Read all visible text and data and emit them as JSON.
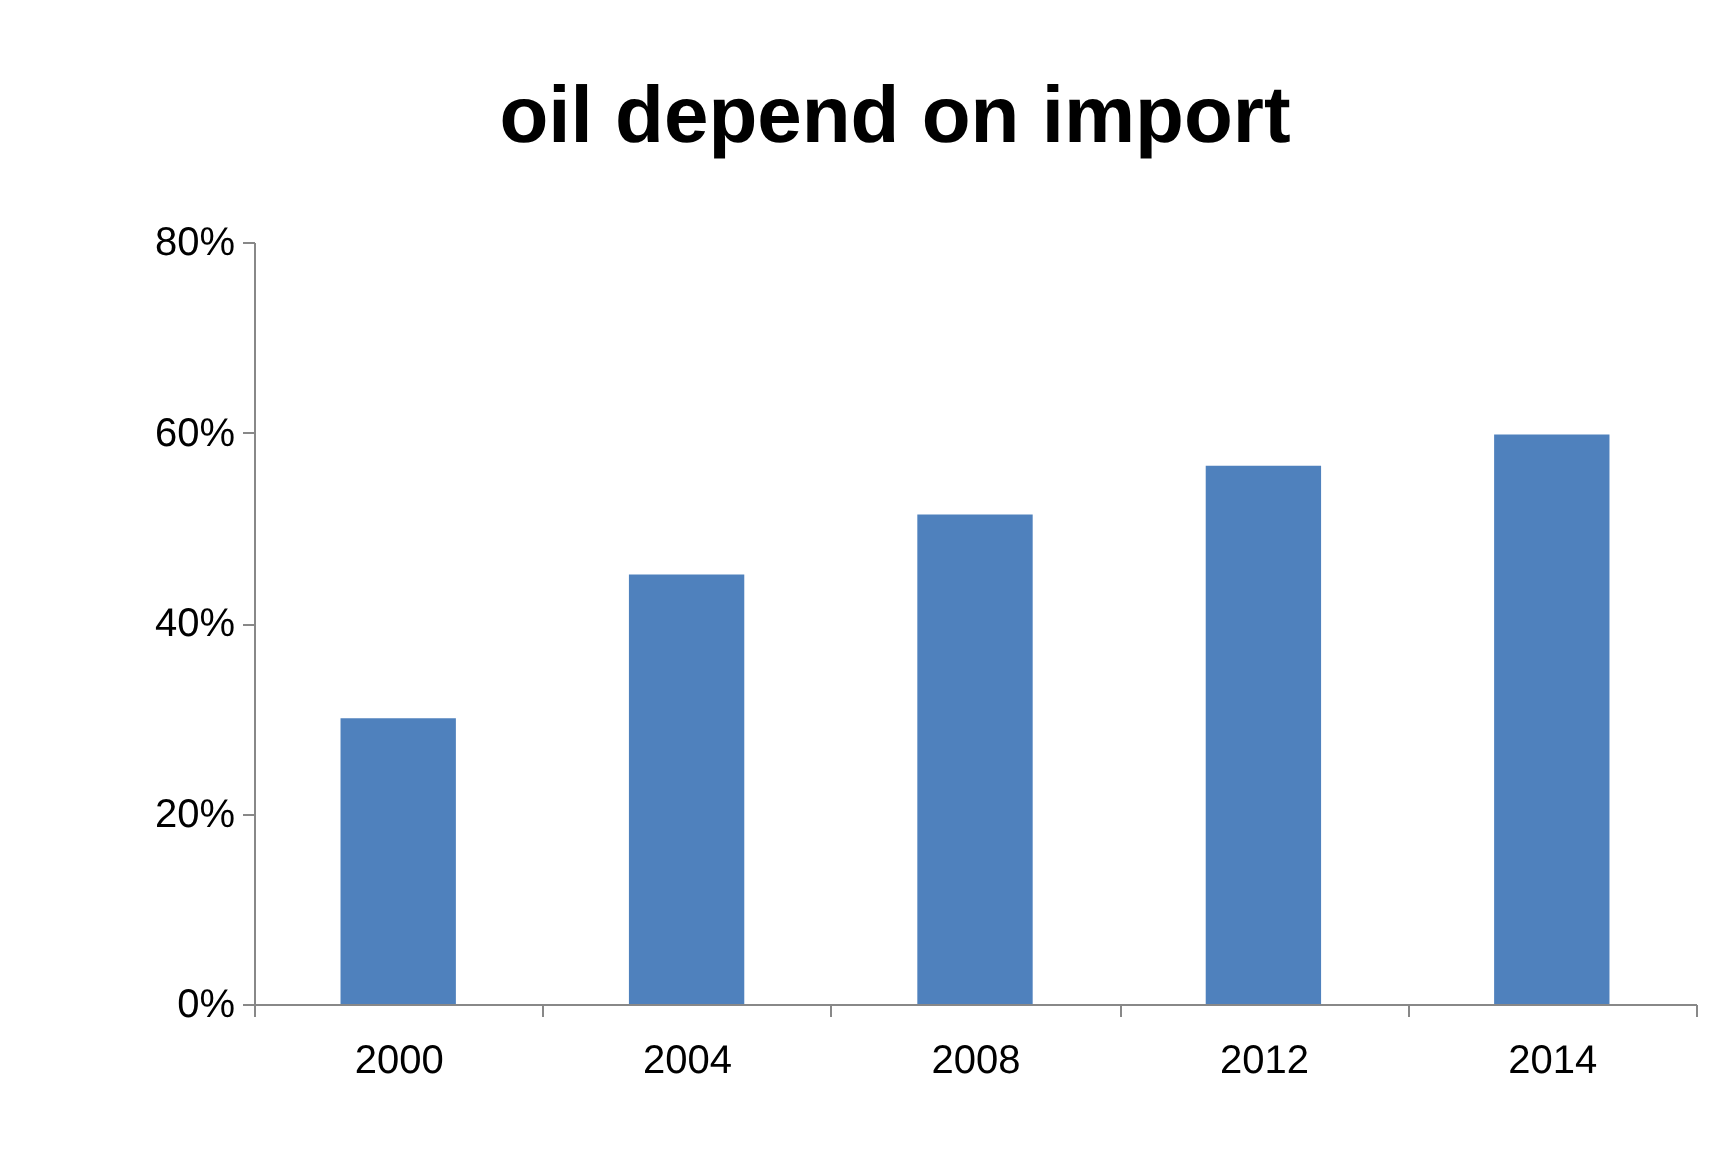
{
  "chart_data": {
    "type": "bar",
    "title": "oil depend on import",
    "categories": [
      "2000",
      "2004",
      "2008",
      "2012",
      "2014"
    ],
    "values": [
      30,
      45.1,
      51.4,
      56.5,
      59.8
    ],
    "color": "#4f81bd",
    "ylim": [
      0,
      80
    ],
    "yticks": [
      {
        "value": 0,
        "label": "0%"
      },
      {
        "value": 20,
        "label": "20%"
      },
      {
        "value": 40,
        "label": "40%"
      },
      {
        "value": 60,
        "label": "60%"
      },
      {
        "value": 80,
        "label": "80%"
      }
    ],
    "grid": false
  }
}
